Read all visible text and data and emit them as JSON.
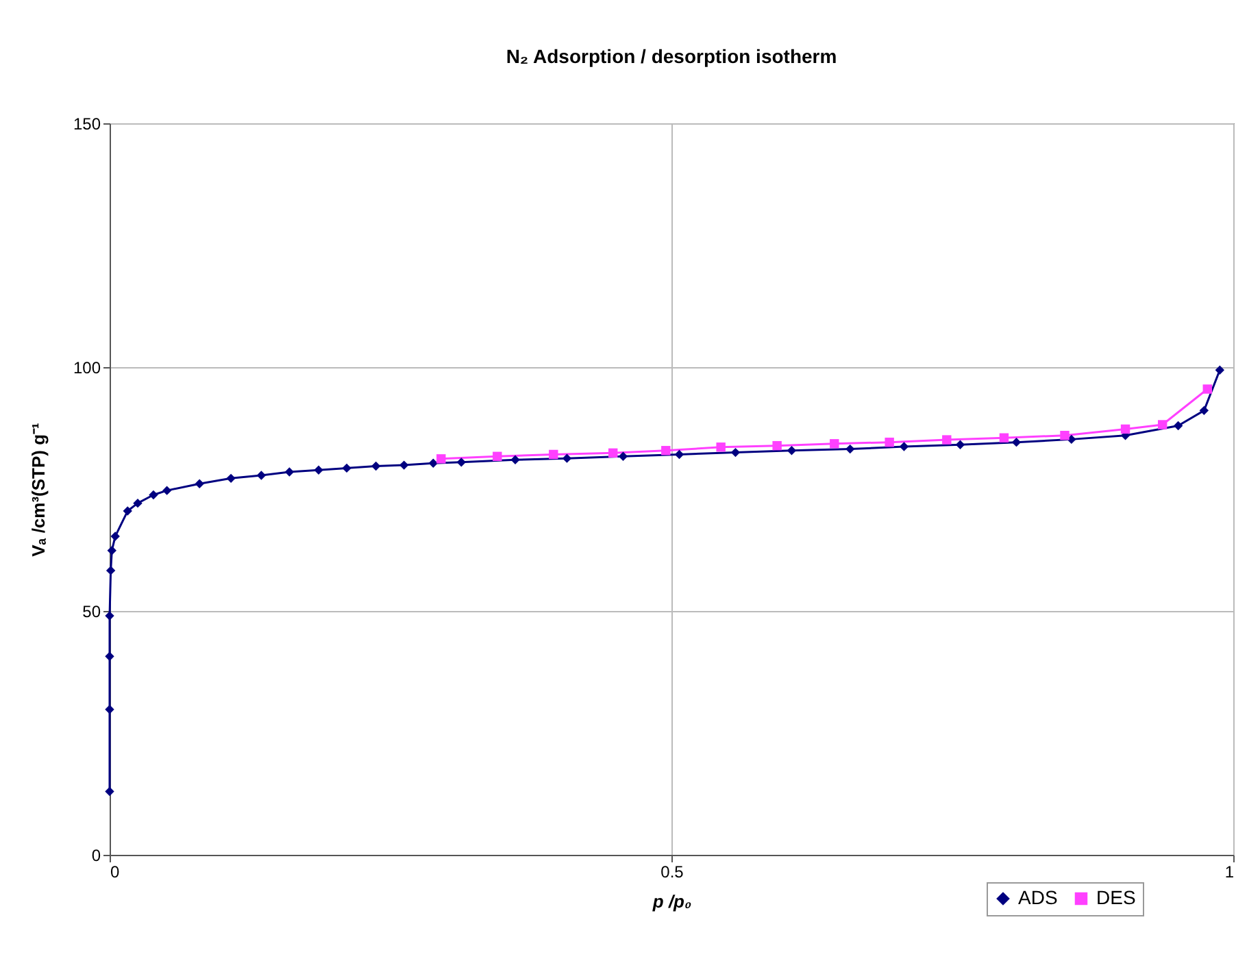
{
  "chart_data": {
    "type": "line",
    "title": "N₂ Adsorption / desorption isotherm",
    "xlabel": "p /p₀",
    "ylabel": "Vₐ /cm³(STP) g⁻¹",
    "xlim": [
      0,
      1
    ],
    "xticks": [
      0,
      0.5,
      1
    ],
    "ylim": [
      0,
      150
    ],
    "yticks": [
      0,
      50,
      100,
      150
    ],
    "grid": true,
    "legend": "bottom right",
    "series": [
      {
        "name": "ADS",
        "color": "#000080",
        "marker": "diamond",
        "x": [
          0,
          0,
          0,
          0,
          0.001,
          0.002,
          0.005,
          0.016,
          0.025,
          0.039,
          0.051,
          0.08,
          0.108,
          0.135,
          0.16,
          0.186,
          0.211,
          0.237,
          0.262,
          0.288,
          0.313,
          0.361,
          0.407,
          0.457,
          0.507,
          0.557,
          0.607,
          0.659,
          0.707,
          0.757,
          0.807,
          0.856,
          0.904,
          0.951,
          0.974,
          0.988
        ],
        "values": [
          13.0,
          29.8,
          40.7,
          49.0,
          58.3,
          62.4,
          65.3,
          70.5,
          72.1,
          73.8,
          74.7,
          76.1,
          77.2,
          77.8,
          78.5,
          78.9,
          79.3,
          79.7,
          79.9,
          80.3,
          80.5,
          81.0,
          81.3,
          81.7,
          82.1,
          82.5,
          82.9,
          83.2,
          83.7,
          84.1,
          84.6,
          85.2,
          86.0,
          88.0,
          91.1,
          99.4
        ]
      },
      {
        "name": "DES",
        "color": "#ff40ff",
        "marker": "square",
        "x": [
          0.295,
          0.345,
          0.395,
          0.448,
          0.495,
          0.544,
          0.594,
          0.645,
          0.694,
          0.745,
          0.796,
          0.85,
          0.904,
          0.937,
          0.977
        ],
        "values": [
          81.2,
          81.7,
          82.1,
          82.4,
          82.9,
          83.6,
          83.9,
          84.3,
          84.6,
          85.1,
          85.5,
          86.0,
          87.3,
          88.2,
          95.5
        ]
      }
    ]
  }
}
